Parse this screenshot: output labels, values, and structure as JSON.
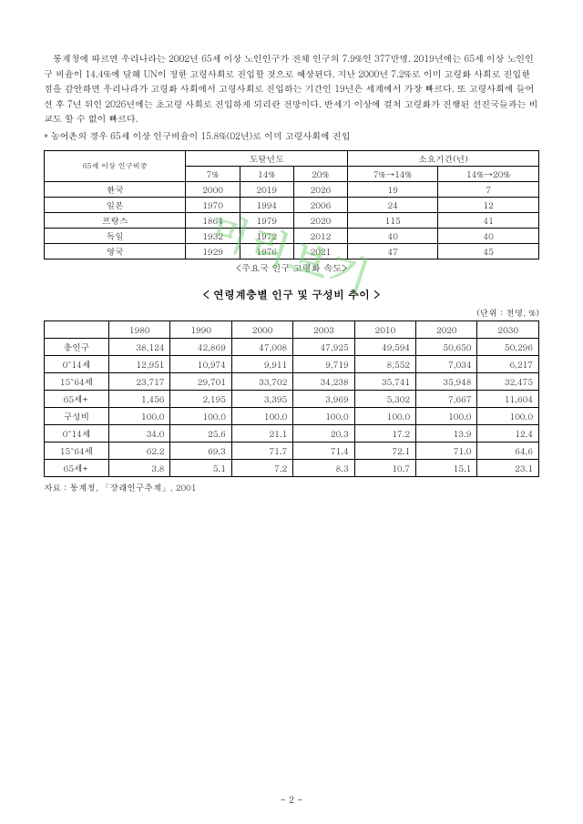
{
  "watermark": "미리보기",
  "paragraph": "통계청에 따르면 우리나라는 2002년  65세 이상 노인인구가 전체 인구의 7.9%인 377만명. 2019년에는 65세 이상 노인인구 비율이 14.4%에 달해 UN이 정한 고령사회로 진입할 것으로 예상된다. 지난 2000년 7.2%로 이미 고령화 사회로 진입한 점을 감안하면 우리나라가 고령화 사회에서 고령사회로 진입하는 기간인 19년은 세계에서 가장 빠르다. 또 고령사회에 들어선 후 7년 뒤인 2026년에는 초고령 사회로 진입하게 되리란 전망이다. 반세기 이상에 걸쳐 고령화가 진행된 선진국들과는 비교도 할 수 없이 빠르다.",
  "note": "* 농어촌의 경우 65세 이상 인구비율이 15.8%(02년)로 이미 고령사회에 진입",
  "table1": {
    "head_group1": "도달년도",
    "head_group2": "소요기간(년)",
    "head_label": "65세 이상 인구비중",
    "cols": [
      "7%",
      "14%",
      "20%",
      "7%→14%",
      "14%→20%"
    ],
    "rows": [
      {
        "label": "한국",
        "cells": [
          "2000",
          "2019",
          "2026",
          "19",
          "7"
        ]
      },
      {
        "label": "일본",
        "cells": [
          "1970",
          "1994",
          "2006",
          "24",
          "12"
        ]
      },
      {
        "label": "프랑스",
        "cells": [
          "1864",
          "1979",
          "2020",
          "115",
          "41"
        ]
      },
      {
        "label": "독일",
        "cells": [
          "1932",
          "1972",
          "2012",
          "40",
          "40"
        ]
      },
      {
        "label": "영국",
        "cells": [
          "1929",
          "1976",
          "2021",
          "47",
          "45"
        ]
      }
    ],
    "caption": "<주요국 인구 고령화 속도>"
  },
  "table2": {
    "title": "< 연령계층별 인구 및 구성비 추이 >",
    "unit": "(단위 : 천명, %)",
    "years": [
      "1980",
      "1990",
      "2000",
      "2003",
      "2010",
      "2020",
      "2030"
    ],
    "rows": [
      {
        "label": "총인구",
        "cells": [
          "38,124",
          "42,869",
          "47,008",
          "47,925",
          "49,594",
          "50,650",
          "50,296"
        ]
      },
      {
        "label": "0˜14세",
        "cells": [
          "12,951",
          "10,974",
          "9,911",
          "9,719",
          "8,552",
          "7,034",
          "6,217"
        ]
      },
      {
        "label": "15˜64세",
        "cells": [
          "23,717",
          "29,701",
          "33,702",
          "34,238",
          "35,741",
          "35,948",
          "32,475"
        ]
      },
      {
        "label": "65세+",
        "cells": [
          "1,456",
          "2,195",
          "3,395",
          "3,969",
          "5,302",
          "7,667",
          "11,604"
        ]
      },
      {
        "label": "구성비",
        "cells": [
          "100.0",
          "100.0",
          "100.0",
          "100.0",
          "100.0",
          "100.0",
          "100.0"
        ]
      },
      {
        "label": "0˜14세",
        "cells": [
          "34.0",
          "25.6",
          "21.1",
          "20.3",
          "17.2",
          "13.9",
          "12.4"
        ]
      },
      {
        "label": "15˜64세",
        "cells": [
          "62.2",
          "69.3",
          "71.7",
          "71.4",
          "72.1",
          "71.0",
          "64.6"
        ]
      },
      {
        "label": "65세+",
        "cells": [
          "3.8",
          "5.1",
          "7.2",
          "8.3",
          "10.7",
          "15.1",
          "23.1"
        ]
      }
    ],
    "source": "자료 : 통계청, 「장래인구추계」, 2001"
  },
  "pagenum": "- 2 -"
}
